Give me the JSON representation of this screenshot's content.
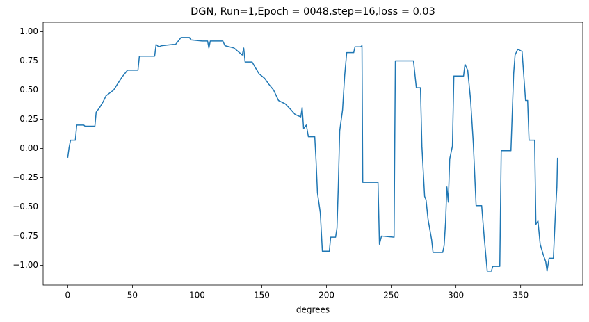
{
  "chart_data": {
    "type": "line",
    "title": "DGN, Run=1,Epoch = 0048,step=16,loss = 0.03",
    "x_label": "degrees",
    "color": "#1f77b4",
    "x": [
      0,
      1.1,
      2.2,
      5.9,
      7,
      12.4,
      13.4,
      21,
      22,
      24.7,
      27.4,
      29.6,
      35.5,
      41.9,
      46.2,
      54.3,
      55.4,
      67.2,
      68.3,
      70.4,
      72.6,
      81.2,
      83.3,
      87.6,
      94.1,
      95.2,
      103.8,
      108.1,
      109.1,
      110.2,
      119.9,
      121.5,
      128.5,
      130.6,
      134.9,
      136,
      137.1,
      142.5,
      144.6,
      147.8,
      152.2,
      155.4,
      159.1,
      162.9,
      168.3,
      172.6,
      175.8,
      180.1,
      181.2,
      182.3,
      184.4,
      186,
      190.9,
      191.9,
      193,
      195.2,
      196.8,
      202.2,
      203.2,
      207,
      208.1,
      209.1,
      210.2,
      212.4,
      214,
      215.6,
      221,
      222,
      226.3,
      227.4,
      228,
      239.8,
      240.9,
      242.5,
      252.2,
      253.2,
      267.2,
      269.4,
      272.6,
      273.7,
      275.8,
      276.9,
      278.5,
      281.2,
      282.3,
      289.8,
      290.9,
      292,
      293,
      294.1,
      295.2,
      297.3,
      298.4,
      305.9,
      307,
      309.1,
      311.3,
      313.4,
      315.6,
      319.9,
      322,
      324.2,
      327.4,
      328.5,
      333.9,
      335,
      342.5,
      344.6,
      345.7,
      347.8,
      351.1,
      353.8,
      355.4,
      356.5,
      360.8,
      361.8,
      363.4,
      365.1,
      367.2,
      369.4,
      370.4,
      372,
      375.3,
      376.9,
      378,
      378.5
    ],
    "values": [
      -0.08,
      0.01,
      0.07,
      0.07,
      0.2,
      0.2,
      0.19,
      0.19,
      0.31,
      0.35,
      0.4,
      0.45,
      0.5,
      0.61,
      0.67,
      0.67,
      0.79,
      0.79,
      0.89,
      0.87,
      0.88,
      0.89,
      0.89,
      0.95,
      0.95,
      0.93,
      0.92,
      0.92,
      0.86,
      0.92,
      0.92,
      0.88,
      0.86,
      0.84,
      0.8,
      0.86,
      0.74,
      0.74,
      0.7,
      0.64,
      0.6,
      0.55,
      0.5,
      0.41,
      0.38,
      0.33,
      0.29,
      0.27,
      0.35,
      0.17,
      0.2,
      0.1,
      0.1,
      -0.1,
      -0.38,
      -0.55,
      -0.88,
      -0.88,
      -0.76,
      -0.76,
      -0.68,
      -0.33,
      0.15,
      0.33,
      0.62,
      0.82,
      0.82,
      0.87,
      0.87,
      0.88,
      -0.29,
      -0.29,
      -0.82,
      -0.75,
      -0.76,
      0.75,
      0.75,
      0.52,
      0.52,
      0.02,
      -0.41,
      -0.44,
      -0.61,
      -0.78,
      -0.89,
      -0.89,
      -0.83,
      -0.63,
      -0.33,
      -0.46,
      -0.09,
      0.02,
      0.62,
      0.62,
      0.72,
      0.67,
      0.42,
      0.05,
      -0.49,
      -0.49,
      -0.78,
      -1.05,
      -1.05,
      -1.01,
      -1.01,
      -0.02,
      -0.02,
      0.64,
      0.8,
      0.85,
      0.83,
      0.41,
      0.41,
      0.07,
      0.07,
      -0.65,
      -0.62,
      -0.82,
      -0.9,
      -0.97,
      -1.05,
      -0.94,
      -0.94,
      -0.55,
      -0.33,
      -0.08
    ],
    "xlim": [
      -19,
      398
    ],
    "xticks": [
      0,
      50,
      100,
      150,
      200,
      250,
      300,
      350
    ],
    "ylim": [
      -1.17,
      1.08
    ],
    "yticks": [
      {
        "value": -1,
        "label": "−1.00"
      },
      {
        "value": -0.75,
        "label": "−0.75"
      },
      {
        "value": -0.5,
        "label": "−0.50"
      },
      {
        "value": -0.25,
        "label": "−0.25"
      },
      {
        "value": 0,
        "label": "0.00"
      },
      {
        "value": 0.25,
        "label": "0.25"
      },
      {
        "value": 0.5,
        "label": "0.50"
      },
      {
        "value": 0.75,
        "label": "0.75"
      },
      {
        "value": 1,
        "label": "1.00"
      }
    ]
  }
}
